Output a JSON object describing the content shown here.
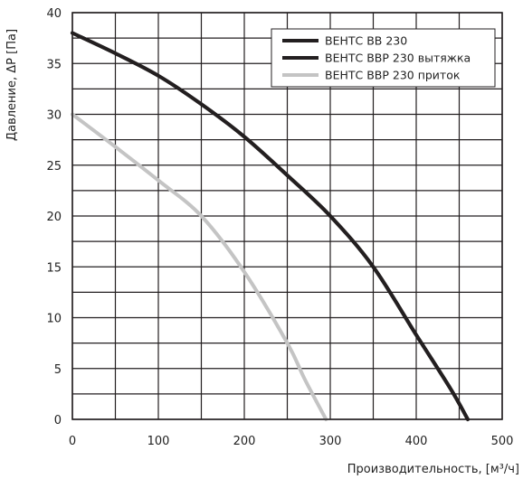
{
  "chart_data": {
    "type": "line",
    "title": "",
    "xlabel": "Производительность, [м³/ч]",
    "ylabel": "Давление, ΔP [Па]",
    "xlim": [
      0,
      500
    ],
    "ylim": [
      0,
      40
    ],
    "x_ticks": [
      0,
      100,
      200,
      300,
      400,
      500
    ],
    "y_ticks": [
      0,
      5,
      10,
      15,
      20,
      25,
      30,
      35,
      40
    ],
    "grid": true,
    "legend_position": "top-right",
    "series": [
      {
        "name": "ВЕНТС ВВ 230",
        "color": "#231f20",
        "points": [
          [
            0,
            38
          ],
          [
            50,
            36
          ],
          [
            100,
            33.8
          ],
          [
            150,
            31
          ],
          [
            200,
            27.8
          ],
          [
            250,
            24
          ],
          [
            300,
            20
          ],
          [
            350,
            15
          ],
          [
            400,
            8.3
          ],
          [
            440,
            3
          ],
          [
            460,
            0
          ]
        ]
      },
      {
        "name": "ВЕНТС ВВР 230 вытяжка",
        "color": "#231f20",
        "points": [
          [
            0,
            38
          ],
          [
            50,
            36
          ],
          [
            100,
            33.8
          ],
          [
            150,
            31
          ],
          [
            200,
            27.8
          ],
          [
            250,
            24
          ],
          [
            300,
            20
          ],
          [
            350,
            15
          ],
          [
            400,
            8.3
          ],
          [
            440,
            3
          ],
          [
            460,
            0
          ]
        ]
      },
      {
        "name": "ВЕНТС ВВР 230 приток",
        "color": "#c4c4c4",
        "points": [
          [
            0,
            30
          ],
          [
            50,
            26.8
          ],
          [
            100,
            23.5
          ],
          [
            150,
            20
          ],
          [
            200,
            14.5
          ],
          [
            250,
            7.5
          ],
          [
            270,
            4
          ],
          [
            295,
            0
          ]
        ]
      }
    ]
  }
}
